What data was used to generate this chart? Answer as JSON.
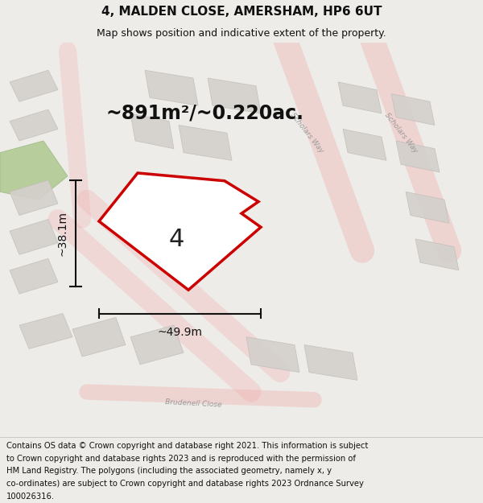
{
  "title": "4, MALDEN CLOSE, AMERSHAM, HP6 6UT",
  "subtitle": "Map shows position and indicative extent of the property.",
  "area_text": "~891m²/~0.220ac.",
  "width_label": "~49.9m",
  "height_label": "~38.1m",
  "property_number": "4",
  "footer_lines": [
    "Contains OS data © Crown copyright and database right 2021. This information is subject",
    "to Crown copyright and database rights 2023 and is reproduced with the permission of",
    "HM Land Registry. The polygons (including the associated geometry, namely x, y",
    "co-ordinates) are subject to Crown copyright and database rights 2023 Ordnance Survey",
    "100026316."
  ],
  "road_color": "#f0b0b0",
  "building_color": "#d4d0cc",
  "building_edge": "#c0bcb8",
  "green_color": "#b4cc98",
  "property_fill": "#ffffff",
  "property_edge": "#cc0000",
  "dim_color": "#111111",
  "bg_map": "#f0ede8",
  "road_label_color": "#999999",
  "title_fontsize": 11,
  "subtitle_fontsize": 9,
  "area_fontsize": 17,
  "label_fontsize": 10,
  "footer_fontsize": 7.2,
  "number_fontsize": 22
}
